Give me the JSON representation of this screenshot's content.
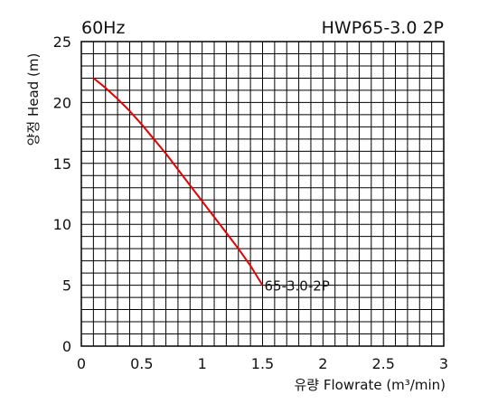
{
  "chart_data": {
    "type": "line",
    "title_left": "60Hz",
    "title_right": "HWP65-3.0 2P",
    "xlabel": "유량 Flowrate (m³/min)",
    "ylabel": "양정 Head (m)",
    "xlim": [
      0,
      3
    ],
    "ylim": [
      0,
      25
    ],
    "x_ticks": [
      "0",
      "0.5",
      "1",
      "1.5",
      "2",
      "2.5",
      "3"
    ],
    "y_ticks": [
      "0",
      "5",
      "10",
      "15",
      "20",
      "25"
    ],
    "x_minor_step": 0.1,
    "y_minor_step": 1,
    "grid": true,
    "series": [
      {
        "name": "65-3.0-2P",
        "color": "#e60000",
        "x": [
          0.1,
          0.2,
          0.3,
          0.4,
          0.5,
          0.6,
          0.7,
          0.8,
          0.9,
          1.0,
          1.1,
          1.2,
          1.3,
          1.4,
          1.5
        ],
        "y": [
          22.0,
          21.2,
          20.3,
          19.3,
          18.2,
          17.0,
          15.8,
          14.5,
          13.2,
          11.9,
          10.6,
          9.3,
          8.0,
          6.6,
          5.0
        ]
      }
    ],
    "annotation": {
      "text": "65-3.0-2P",
      "x": 1.5,
      "y": 5.0
    }
  }
}
